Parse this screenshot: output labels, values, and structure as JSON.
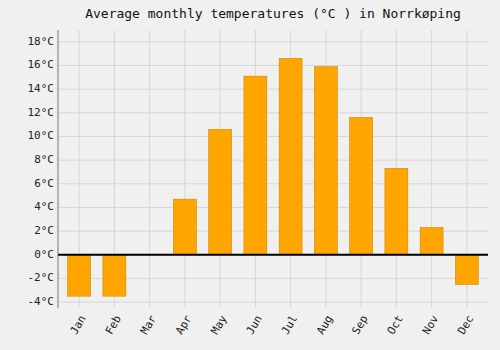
{
  "chart_data": {
    "type": "bar",
    "title": "Average monthly temperatures (°C ) in Norrkøping",
    "categories": [
      "Jan",
      "Feb",
      "Mar",
      "Apr",
      "May",
      "Jun",
      "Jul",
      "Aug",
      "Sep",
      "Oct",
      "Nov",
      "Dec"
    ],
    "values": [
      -3.5,
      -3.5,
      0.0,
      4.7,
      10.6,
      15.1,
      16.6,
      15.9,
      11.6,
      7.3,
      2.3,
      -2.5
    ],
    "color": "#FFA500",
    "ylim": [
      -4.5,
      19.0
    ],
    "yticks": [
      {
        "value": -4,
        "label": "-4°C"
      },
      {
        "value": -2,
        "label": "-2°C"
      },
      {
        "value": 0,
        "label": "0°C"
      },
      {
        "value": 2,
        "label": "2°C"
      },
      {
        "value": 4,
        "label": "4°C"
      },
      {
        "value": 6,
        "label": "6°C"
      },
      {
        "value": 8,
        "label": "8°C"
      },
      {
        "value": 10,
        "label": "10°C"
      },
      {
        "value": 12,
        "label": "12°C"
      },
      {
        "value": 14,
        "label": "14°C"
      },
      {
        "value": 16,
        "label": "16°C"
      },
      {
        "value": 18,
        "label": "18°C"
      }
    ],
    "grid": true
  }
}
